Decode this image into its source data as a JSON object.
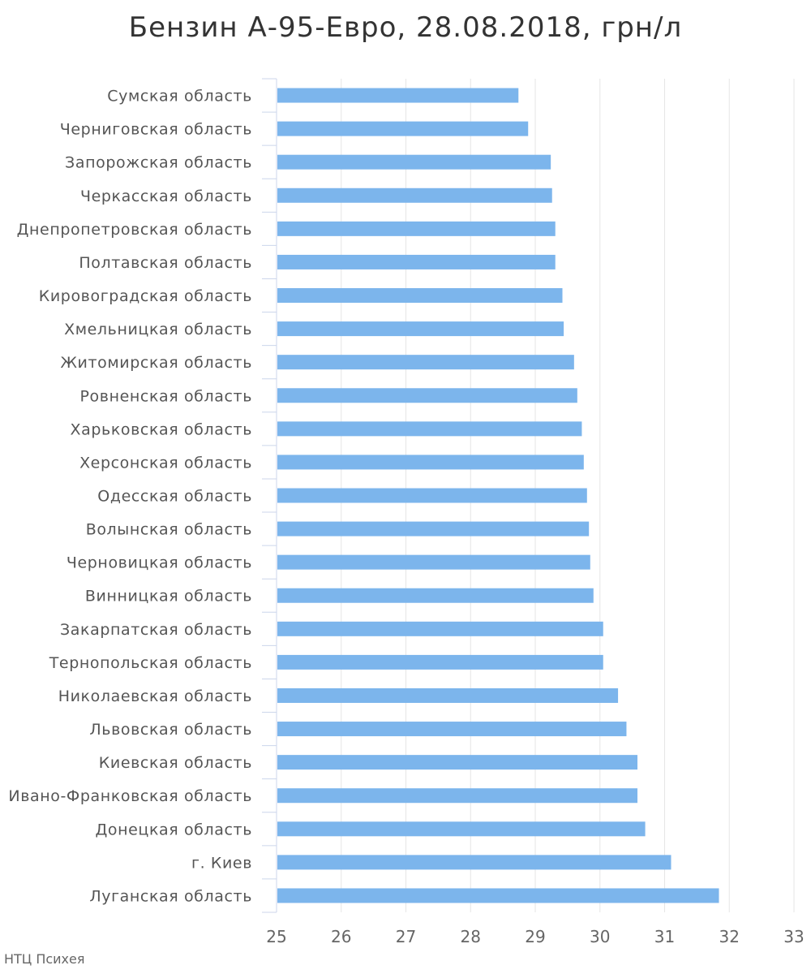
{
  "chart_data": {
    "type": "bar",
    "orientation": "horizontal",
    "title": "Бензин А-95-Евро, 28.08.2018, грн/л",
    "xlabel": "",
    "ylabel": "",
    "xlim": [
      25,
      33
    ],
    "x_ticks": [
      "25",
      "26",
      "27",
      "28",
      "29",
      "30",
      "31",
      "32",
      "33"
    ],
    "grid": true,
    "legend": "none",
    "bar_color": "#7cb5ec",
    "categories": [
      "Сумская область",
      "Черниговская область",
      "Запорожская область",
      "Черкасская область",
      "Днепропетровская область",
      "Полтавская область",
      "Кировоградская область",
      "Хмельницкая область",
      "Житомирская область",
      "Ровненская область",
      "Харьковская область",
      "Херсонская область",
      "Одесская область",
      "Волынская область",
      "Черновицкая область",
      "Винницкая область",
      "Закарпатская область",
      "Тернопольская область",
      "Николаевская область",
      "Львовская область",
      "Киевская область",
      "Ивано-Франковская область",
      "Донецкая область",
      "г. Киев",
      "Луганская область"
    ],
    "values": [
      28.74,
      28.89,
      29.24,
      29.26,
      29.31,
      29.31,
      29.42,
      29.44,
      29.6,
      29.65,
      29.72,
      29.75,
      29.8,
      29.83,
      29.85,
      29.9,
      30.05,
      30.05,
      30.28,
      30.41,
      30.58,
      30.58,
      30.7,
      31.1,
      31.84
    ]
  },
  "footer": {
    "credit": "НТЦ Психея"
  }
}
